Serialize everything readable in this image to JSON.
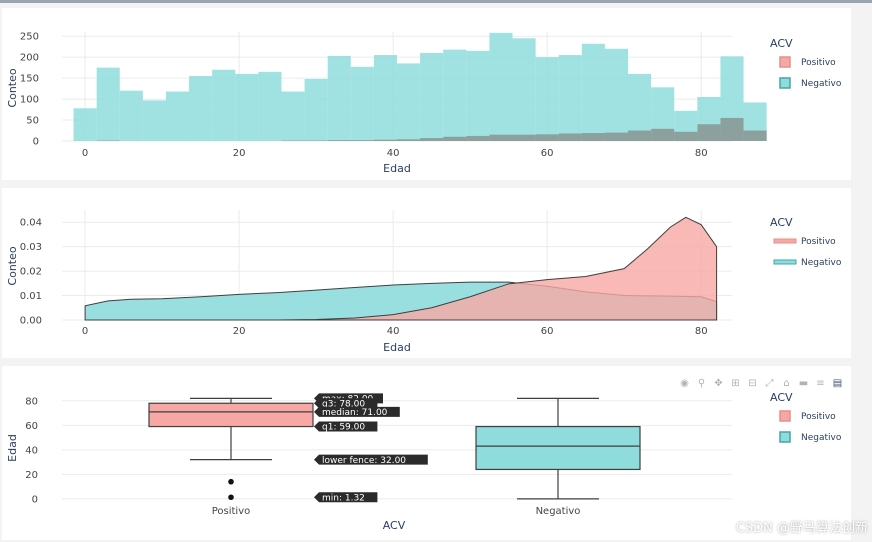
{
  "watermark": "CSDN @野马算法创新",
  "legend": {
    "title": "ACV",
    "items": [
      {
        "label": "Positivo",
        "fill": "#f8a8a4",
        "stroke": "#e58f8a"
      },
      {
        "label": "Negativo",
        "fill": "#8fdcdc",
        "stroke": "#45a5a5"
      }
    ]
  },
  "colors": {
    "positivo": "#f8a8a4",
    "negativo": "#8fdcdc",
    "grid": "#ebebeb",
    "line": "#3f3f3f"
  },
  "toolbar": {
    "icons": [
      "camera-icon",
      "zoom-icon",
      "pan-icon",
      "zoom-in-icon",
      "zoom-out-icon",
      "autoscale-icon",
      "reset-axes-icon",
      "spike-lines-icon",
      "compare-icon",
      "plotly-logo-icon"
    ]
  },
  "chart_data": [
    {
      "type": "bar",
      "subtype": "histogram-overlay",
      "xlabel": "Edad",
      "ylabel": "Conteo",
      "xlim": [
        -3,
        84
      ],
      "ylim": [
        0,
        260
      ],
      "xticks": [
        "0",
        "20",
        "40",
        "60",
        "80"
      ],
      "yticks": [
        "0",
        "50",
        "100",
        "150",
        "200",
        "250"
      ],
      "bin_start": -1.5,
      "bin_width": 3,
      "series": [
        {
          "name": "Negativo",
          "values": [
            78,
            175,
            120,
            97,
            118,
            155,
            170,
            160,
            165,
            118,
            148,
            203,
            177,
            205,
            185,
            210,
            218,
            215,
            258,
            245,
            200,
            205,
            232,
            220,
            160,
            128,
            72,
            105,
            202,
            92
          ]
        },
        {
          "name": "Positivo",
          "values": [
            0,
            1,
            0,
            0,
            0,
            0,
            0,
            0,
            0,
            1,
            1,
            2,
            2,
            3,
            4,
            7,
            10,
            12,
            15,
            15,
            16,
            18,
            19,
            20,
            25,
            29,
            22,
            40,
            55,
            25
          ]
        }
      ]
    },
    {
      "type": "area",
      "subtype": "density",
      "xlabel": "Edad",
      "ylabel": "Conteo",
      "xlim": [
        -3,
        84
      ],
      "ylim": [
        0,
        0.045
      ],
      "xticks": [
        "0",
        "20",
        "40",
        "60",
        "80"
      ],
      "yticks": [
        "0.00",
        "0.01",
        "0.02",
        "0.03",
        "0.04"
      ],
      "series": [
        {
          "name": "Negativo",
          "x": [
            0,
            3,
            6,
            10,
            15,
            20,
            25,
            30,
            35,
            40,
            45,
            50,
            55,
            60,
            65,
            70,
            75,
            80,
            82
          ],
          "y": [
            0.0058,
            0.0078,
            0.0085,
            0.0087,
            0.0095,
            0.0105,
            0.0112,
            0.0122,
            0.0133,
            0.0143,
            0.015,
            0.0155,
            0.0155,
            0.0138,
            0.0115,
            0.01,
            0.0098,
            0.0095,
            0.0075
          ]
        },
        {
          "name": "Positivo",
          "x": [
            25,
            30,
            35,
            40,
            45,
            50,
            55,
            60,
            65,
            70,
            73,
            76,
            78,
            80,
            82
          ],
          "y": [
            0.0,
            0.0002,
            0.0008,
            0.0022,
            0.005,
            0.0095,
            0.0148,
            0.0165,
            0.0178,
            0.021,
            0.029,
            0.038,
            0.042,
            0.039,
            0.03
          ]
        }
      ]
    },
    {
      "type": "box",
      "xlabel": "ACV",
      "ylabel": "Edad",
      "ylim": [
        -5,
        88
      ],
      "yticks": [
        "0",
        "20",
        "40",
        "60",
        "80"
      ],
      "categories": [
        "Positivo",
        "Negativo"
      ],
      "boxes": [
        {
          "name": "Positivo",
          "min": 32,
          "q1": 59,
          "median": 71,
          "q3": 78,
          "max": 82,
          "outliers": [
            1.32,
            14
          ]
        },
        {
          "name": "Negativo",
          "min": 0,
          "q1": 24,
          "median": 43,
          "q3": 59,
          "max": 82,
          "outliers": []
        }
      ],
      "hover_labels": [
        "max: 82.00",
        "q3: 78.00",
        "median: 71.00",
        "q1: 59.00",
        "lower fence: 32.00",
        "min: 1.32"
      ]
    }
  ]
}
